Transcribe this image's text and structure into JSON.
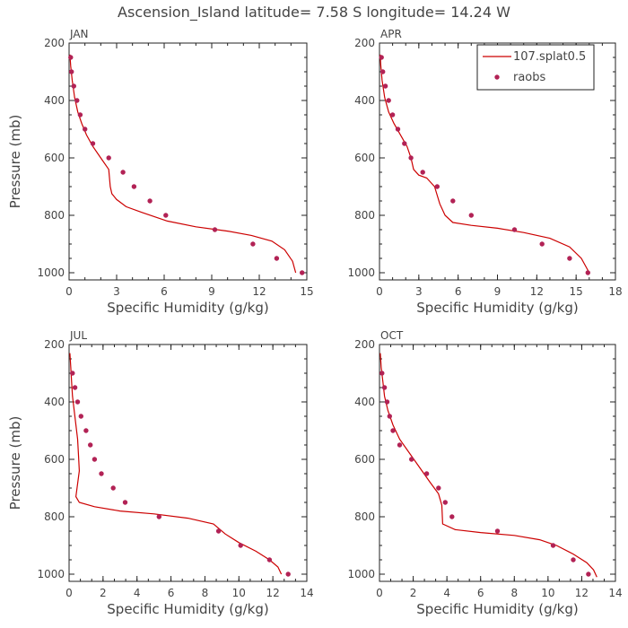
{
  "title": "Ascension_Island  latitude= 7.58 S longitude= 14.24 W",
  "colors": {
    "model": "#cc0000",
    "obs": "#b22255",
    "axis": "#222222",
    "text": "#444444"
  },
  "legend": {
    "placement": "top-right of APR panel",
    "model_label": "107.splat0.5",
    "obs_label": "raobs"
  },
  "chart_data": [
    {
      "type": "line",
      "label": "JAN",
      "xlabel": "Specific Humidity (g/kg)",
      "ylabel": "Pressure (mb)",
      "xlim": [
        0,
        15
      ],
      "ylim": [
        1025,
        200
      ],
      "xticks": [
        0,
        3,
        6,
        9,
        12,
        15
      ],
      "yticks": [
        200,
        400,
        600,
        800,
        1000
      ],
      "series": [
        {
          "name": "107.splat0.5",
          "kind": "line",
          "x": [
            0.05,
            0.1,
            0.2,
            0.35,
            0.55,
            0.8,
            1.1,
            1.5,
            2.0,
            2.5,
            2.6,
            2.7,
            3.0,
            3.6,
            4.6,
            6.2,
            8.0,
            10.0,
            11.5,
            12.8,
            13.6,
            14.1,
            14.3
          ],
          "y": [
            240,
            280,
            330,
            390,
            440,
            480,
            520,
            560,
            600,
            640,
            700,
            725,
            745,
            770,
            790,
            820,
            840,
            855,
            870,
            890,
            920,
            960,
            1000
          ]
        },
        {
          "name": "raobs",
          "kind": "scatter",
          "x": [
            0.1,
            0.15,
            0.3,
            0.5,
            0.7,
            1.0,
            1.5,
            2.5,
            3.4,
            4.1,
            5.1,
            6.1,
            9.2,
            11.6,
            13.1,
            14.7
          ],
          "y": [
            250,
            300,
            350,
            400,
            450,
            500,
            550,
            600,
            650,
            700,
            750,
            800,
            850,
            900,
            950,
            1000
          ]
        }
      ]
    },
    {
      "type": "line",
      "label": "APR",
      "xlabel": "Specific Humidity (g/kg)",
      "ylabel": "",
      "xlim": [
        0,
        18
      ],
      "ylim": [
        1025,
        200
      ],
      "xticks": [
        0,
        3,
        6,
        9,
        12,
        15,
        18
      ],
      "yticks": [
        200,
        400,
        600,
        800,
        1000
      ],
      "series": [
        {
          "name": "107.splat0.5",
          "kind": "line",
          "x": [
            0.05,
            0.1,
            0.2,
            0.4,
            0.7,
            1.1,
            1.6,
            2.1,
            2.4,
            2.6,
            3.0,
            3.6,
            4.2,
            4.6,
            5.0,
            5.6,
            7.0,
            9.0,
            11.0,
            13.0,
            14.5,
            15.4,
            16.0
          ],
          "y": [
            240,
            280,
            330,
            390,
            440,
            480,
            520,
            560,
            600,
            640,
            660,
            670,
            700,
            760,
            800,
            825,
            835,
            845,
            860,
            880,
            910,
            950,
            1000
          ]
        },
        {
          "name": "raobs",
          "kind": "scatter",
          "x": [
            0.15,
            0.25,
            0.45,
            0.7,
            1.0,
            1.4,
            1.9,
            2.4,
            3.3,
            4.4,
            5.6,
            7.0,
            10.3,
            12.4,
            14.5,
            15.9
          ],
          "y": [
            250,
            300,
            350,
            400,
            450,
            500,
            550,
            600,
            650,
            700,
            750,
            800,
            850,
            900,
            950,
            1000
          ]
        }
      ]
    },
    {
      "type": "line",
      "label": "JUL",
      "xlabel": "Specific Humidity (g/kg)",
      "ylabel": "Pressure (mb)",
      "xlim": [
        0,
        14
      ],
      "ylim": [
        1025,
        200
      ],
      "xticks": [
        0,
        2,
        4,
        6,
        8,
        10,
        12,
        14
      ],
      "yticks": [
        200,
        400,
        600,
        800,
        1000
      ],
      "series": [
        {
          "name": "107.splat0.5",
          "kind": "line",
          "x": [
            0.05,
            0.1,
            0.15,
            0.2,
            0.3,
            0.4,
            0.5,
            0.55,
            0.6,
            0.4,
            0.6,
            1.5,
            3.0,
            5.0,
            7.0,
            8.5,
            8.8,
            9.2,
            10.0,
            11.0,
            11.8,
            12.3,
            12.5
          ],
          "y": [
            230,
            280,
            330,
            380,
            430,
            480,
            530,
            580,
            640,
            730,
            750,
            765,
            780,
            790,
            805,
            825,
            840,
            860,
            890,
            920,
            950,
            975,
            1000
          ]
        },
        {
          "name": "raobs",
          "kind": "scatter",
          "x": [
            0.2,
            0.35,
            0.5,
            0.7,
            1.0,
            1.25,
            1.5,
            1.9,
            2.6,
            3.3,
            5.3,
            8.8,
            10.1,
            11.8,
            12.9
          ],
          "y": [
            300,
            350,
            400,
            450,
            500,
            550,
            600,
            650,
            700,
            750,
            800,
            850,
            900,
            950,
            1000
          ]
        }
      ]
    },
    {
      "type": "line",
      "label": "OCT",
      "xlabel": "Specific Humidity (g/kg)",
      "ylabel": "",
      "xlim": [
        0,
        14
      ],
      "ylim": [
        1025,
        200
      ],
      "xticks": [
        0,
        2,
        4,
        6,
        8,
        10,
        12,
        14
      ],
      "yticks": [
        200,
        400,
        600,
        800,
        1000
      ],
      "series": [
        {
          "name": "107.splat0.5",
          "kind": "line",
          "x": [
            0.05,
            0.1,
            0.2,
            0.3,
            0.5,
            0.8,
            1.2,
            1.8,
            2.4,
            3.0,
            3.5,
            3.7,
            3.75,
            4.5,
            6.0,
            8.0,
            9.5,
            10.5,
            11.5,
            12.3,
            12.7,
            12.9
          ],
          "y": [
            230,
            280,
            330,
            380,
            430,
            480,
            530,
            580,
            630,
            680,
            720,
            760,
            825,
            845,
            855,
            865,
            880,
            900,
            930,
            960,
            985,
            1010
          ]
        },
        {
          "name": "raobs",
          "kind": "scatter",
          "x": [
            0.15,
            0.3,
            0.45,
            0.6,
            0.8,
            1.2,
            1.9,
            2.8,
            3.5,
            3.9,
            4.3,
            7.0,
            10.3,
            11.5,
            12.4
          ],
          "y": [
            300,
            350,
            400,
            450,
            500,
            550,
            600,
            650,
            700,
            750,
            800,
            850,
            900,
            950,
            1000
          ]
        }
      ]
    }
  ]
}
